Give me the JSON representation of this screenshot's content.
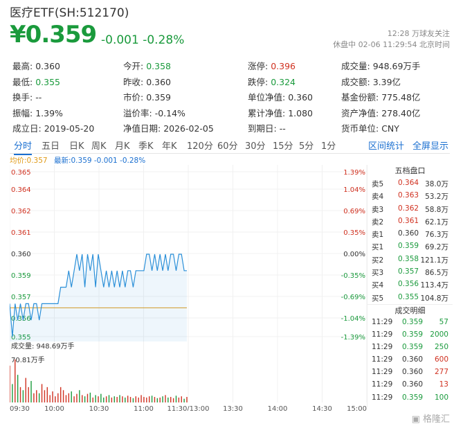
{
  "header": {
    "title": "医疗ETF(SH:512170)",
    "price": "¥0.359",
    "change": "-0.001 -0.28%",
    "time_line1": "12:28 万球友关注",
    "time_line2": "休盘中 02-06 11:29:54 北京时间"
  },
  "stats": [
    [
      {
        "label": "最高:",
        "value": "0.360",
        "color": "normal"
      },
      {
        "label": "今开:",
        "value": "0.358",
        "color": "green"
      },
      {
        "label": "涨停:",
        "value": "0.396",
        "color": "red"
      },
      {
        "label": "成交量:",
        "value": "948.69万手",
        "color": "normal"
      }
    ],
    [
      {
        "label": "最低:",
        "value": "0.355",
        "color": "green"
      },
      {
        "label": "昨收:",
        "value": "0.360",
        "color": "normal"
      },
      {
        "label": "跌停:",
        "value": "0.324",
        "color": "green"
      },
      {
        "label": "成交额:",
        "value": "3.39亿",
        "color": "normal"
      }
    ],
    [
      {
        "label": "换手:",
        "value": "--",
        "color": "normal"
      },
      {
        "label": "市价:",
        "value": "0.359",
        "color": "normal"
      },
      {
        "label": "单位净值:",
        "value": "0.360",
        "color": "normal"
      },
      {
        "label": "基金份额:",
        "value": "775.48亿",
        "color": "normal"
      }
    ],
    [
      {
        "label": "振幅:",
        "value": "1.39%",
        "color": "normal"
      },
      {
        "label": "溢价率:",
        "value": "-0.14%",
        "color": "normal"
      },
      {
        "label": "累计净值:",
        "value": "1.080",
        "color": "normal"
      },
      {
        "label": "资产净值:",
        "value": "278.40亿",
        "color": "normal"
      }
    ],
    [
      {
        "label": "成立日:",
        "value": "2019-05-20",
        "color": "normal"
      },
      {
        "label": "净值日期:",
        "value": "2026-02-05",
        "color": "normal"
      },
      {
        "label": "到期日:",
        "value": "--",
        "color": "normal"
      },
      {
        "label": "货币单位:",
        "value": "CNY",
        "color": "normal"
      }
    ]
  ],
  "tabs": [
    "分时",
    "五日",
    "日K",
    "周K",
    "月K",
    "季K",
    "年K",
    "120分",
    "60分",
    "30分",
    "15分",
    "5分",
    "1分"
  ],
  "active_tab": "分时",
  "tabs_right": [
    "区间统计",
    "全屏显示"
  ],
  "avg_label": "均价:0.357",
  "latest_label": "最新:0.359 -0.001 -0.28%",
  "volume_label": "成交量: 948.69万手",
  "volume_max_label": "70.81万手",
  "order_book_title": "五档盘口",
  "order_book": [
    {
      "label": "卖5",
      "price": "0.364",
      "vol": "38.0万",
      "color": "red"
    },
    {
      "label": "卖4",
      "price": "0.363",
      "vol": "53.2万",
      "color": "red"
    },
    {
      "label": "卖3",
      "price": "0.362",
      "vol": "58.8万",
      "color": "red"
    },
    {
      "label": "卖2",
      "price": "0.361",
      "vol": "62.1万",
      "color": "red"
    },
    {
      "label": "卖1",
      "price": "0.360",
      "vol": "76.3万",
      "color": "normal"
    },
    {
      "label": "买1",
      "price": "0.359",
      "vol": "69.2万",
      "color": "green"
    },
    {
      "label": "买2",
      "price": "0.358",
      "vol": "121.1万",
      "color": "green"
    },
    {
      "label": "买3",
      "price": "0.357",
      "vol": "86.5万",
      "color": "green"
    },
    {
      "label": "买4",
      "price": "0.356",
      "vol": "113.4万",
      "color": "green"
    },
    {
      "label": "买5",
      "price": "0.355",
      "vol": "104.8万",
      "color": "green"
    }
  ],
  "trades_title": "成交明细",
  "trades": [
    {
      "time": "11:29",
      "price": "0.359",
      "vol": "57",
      "color": "green",
      "vcolor": "green"
    },
    {
      "time": "11:29",
      "price": "0.359",
      "vol": "2000",
      "color": "green",
      "vcolor": "green"
    },
    {
      "time": "11:29",
      "price": "0.359",
      "vol": "250",
      "color": "green",
      "vcolor": "green"
    },
    {
      "time": "11:29",
      "price": "0.360",
      "vol": "600",
      "color": "normal",
      "vcolor": "red"
    },
    {
      "time": "11:29",
      "price": "0.360",
      "vol": "277",
      "color": "normal",
      "vcolor": "red"
    },
    {
      "time": "11:29",
      "price": "0.360",
      "vol": "13",
      "color": "normal",
      "vcolor": "red"
    },
    {
      "time": "11:29",
      "price": "0.359",
      "vol": "100",
      "color": "green",
      "vcolor": "green"
    }
  ],
  "watermark": "格隆汇",
  "colors": {
    "green": "#1a9a3c",
    "red": "#d0301f",
    "line": "#2a8fd8",
    "avg": "#e09a16"
  },
  "chart_data": {
    "type": "line",
    "y_ticks": [
      "0.365",
      "0.364",
      "0.362",
      "0.361",
      "0.360",
      "0.359",
      "0.357",
      "0.356",
      "0.355"
    ],
    "pct_ticks": [
      "1.39%",
      "1.04%",
      "0.69%",
      "0.35%",
      "0.00%",
      "-0.35%",
      "-0.69%",
      "-1.04%",
      "-1.39%"
    ],
    "x_ticks": [
      "09:30",
      "10:00",
      "10:30",
      "11:00",
      "11:30/13:00",
      "13:30",
      "14:00",
      "14:30",
      "15:00"
    ],
    "ylim": [
      0.355,
      0.365
    ],
    "avg_price": 0.357,
    "price_series": [
      0.357,
      0.355,
      0.357,
      0.356,
      0.357,
      0.356,
      0.357,
      0.357,
      0.356,
      0.357,
      0.357,
      0.356,
      0.357,
      0.357,
      0.357,
      0.357,
      0.357,
      0.357,
      0.357,
      0.358,
      0.358,
      0.358,
      0.359,
      0.358,
      0.359,
      0.36,
      0.359,
      0.36,
      0.358,
      0.36,
      0.359,
      0.36,
      0.358,
      0.36,
      0.359,
      0.358,
      0.359,
      0.358,
      0.359,
      0.358,
      0.359,
      0.358,
      0.359,
      0.358,
      0.359,
      0.359,
      0.358,
      0.359,
      0.359,
      0.359,
      0.359,
      0.36,
      0.36,
      0.359,
      0.36,
      0.359,
      0.36,
      0.359,
      0.36,
      0.359,
      0.36,
      0.36,
      0.359,
      0.36,
      0.36,
      0.359,
      0.359
    ],
    "volume_series": [
      60,
      30,
      70,
      45,
      25,
      20,
      40,
      25,
      35,
      15,
      20,
      15,
      30,
      20,
      25,
      12,
      18,
      10,
      15,
      25,
      20,
      12,
      15,
      18,
      10,
      14,
      20,
      12,
      10,
      14,
      16,
      8,
      12,
      10,
      14,
      8,
      10,
      12,
      8,
      10,
      9,
      12,
      10,
      8,
      11,
      9,
      7,
      10,
      8,
      12,
      9,
      8,
      10,
      11,
      9,
      7,
      8,
      10,
      12,
      8,
      9,
      7,
      11,
      8,
      10,
      6,
      9
    ]
  }
}
